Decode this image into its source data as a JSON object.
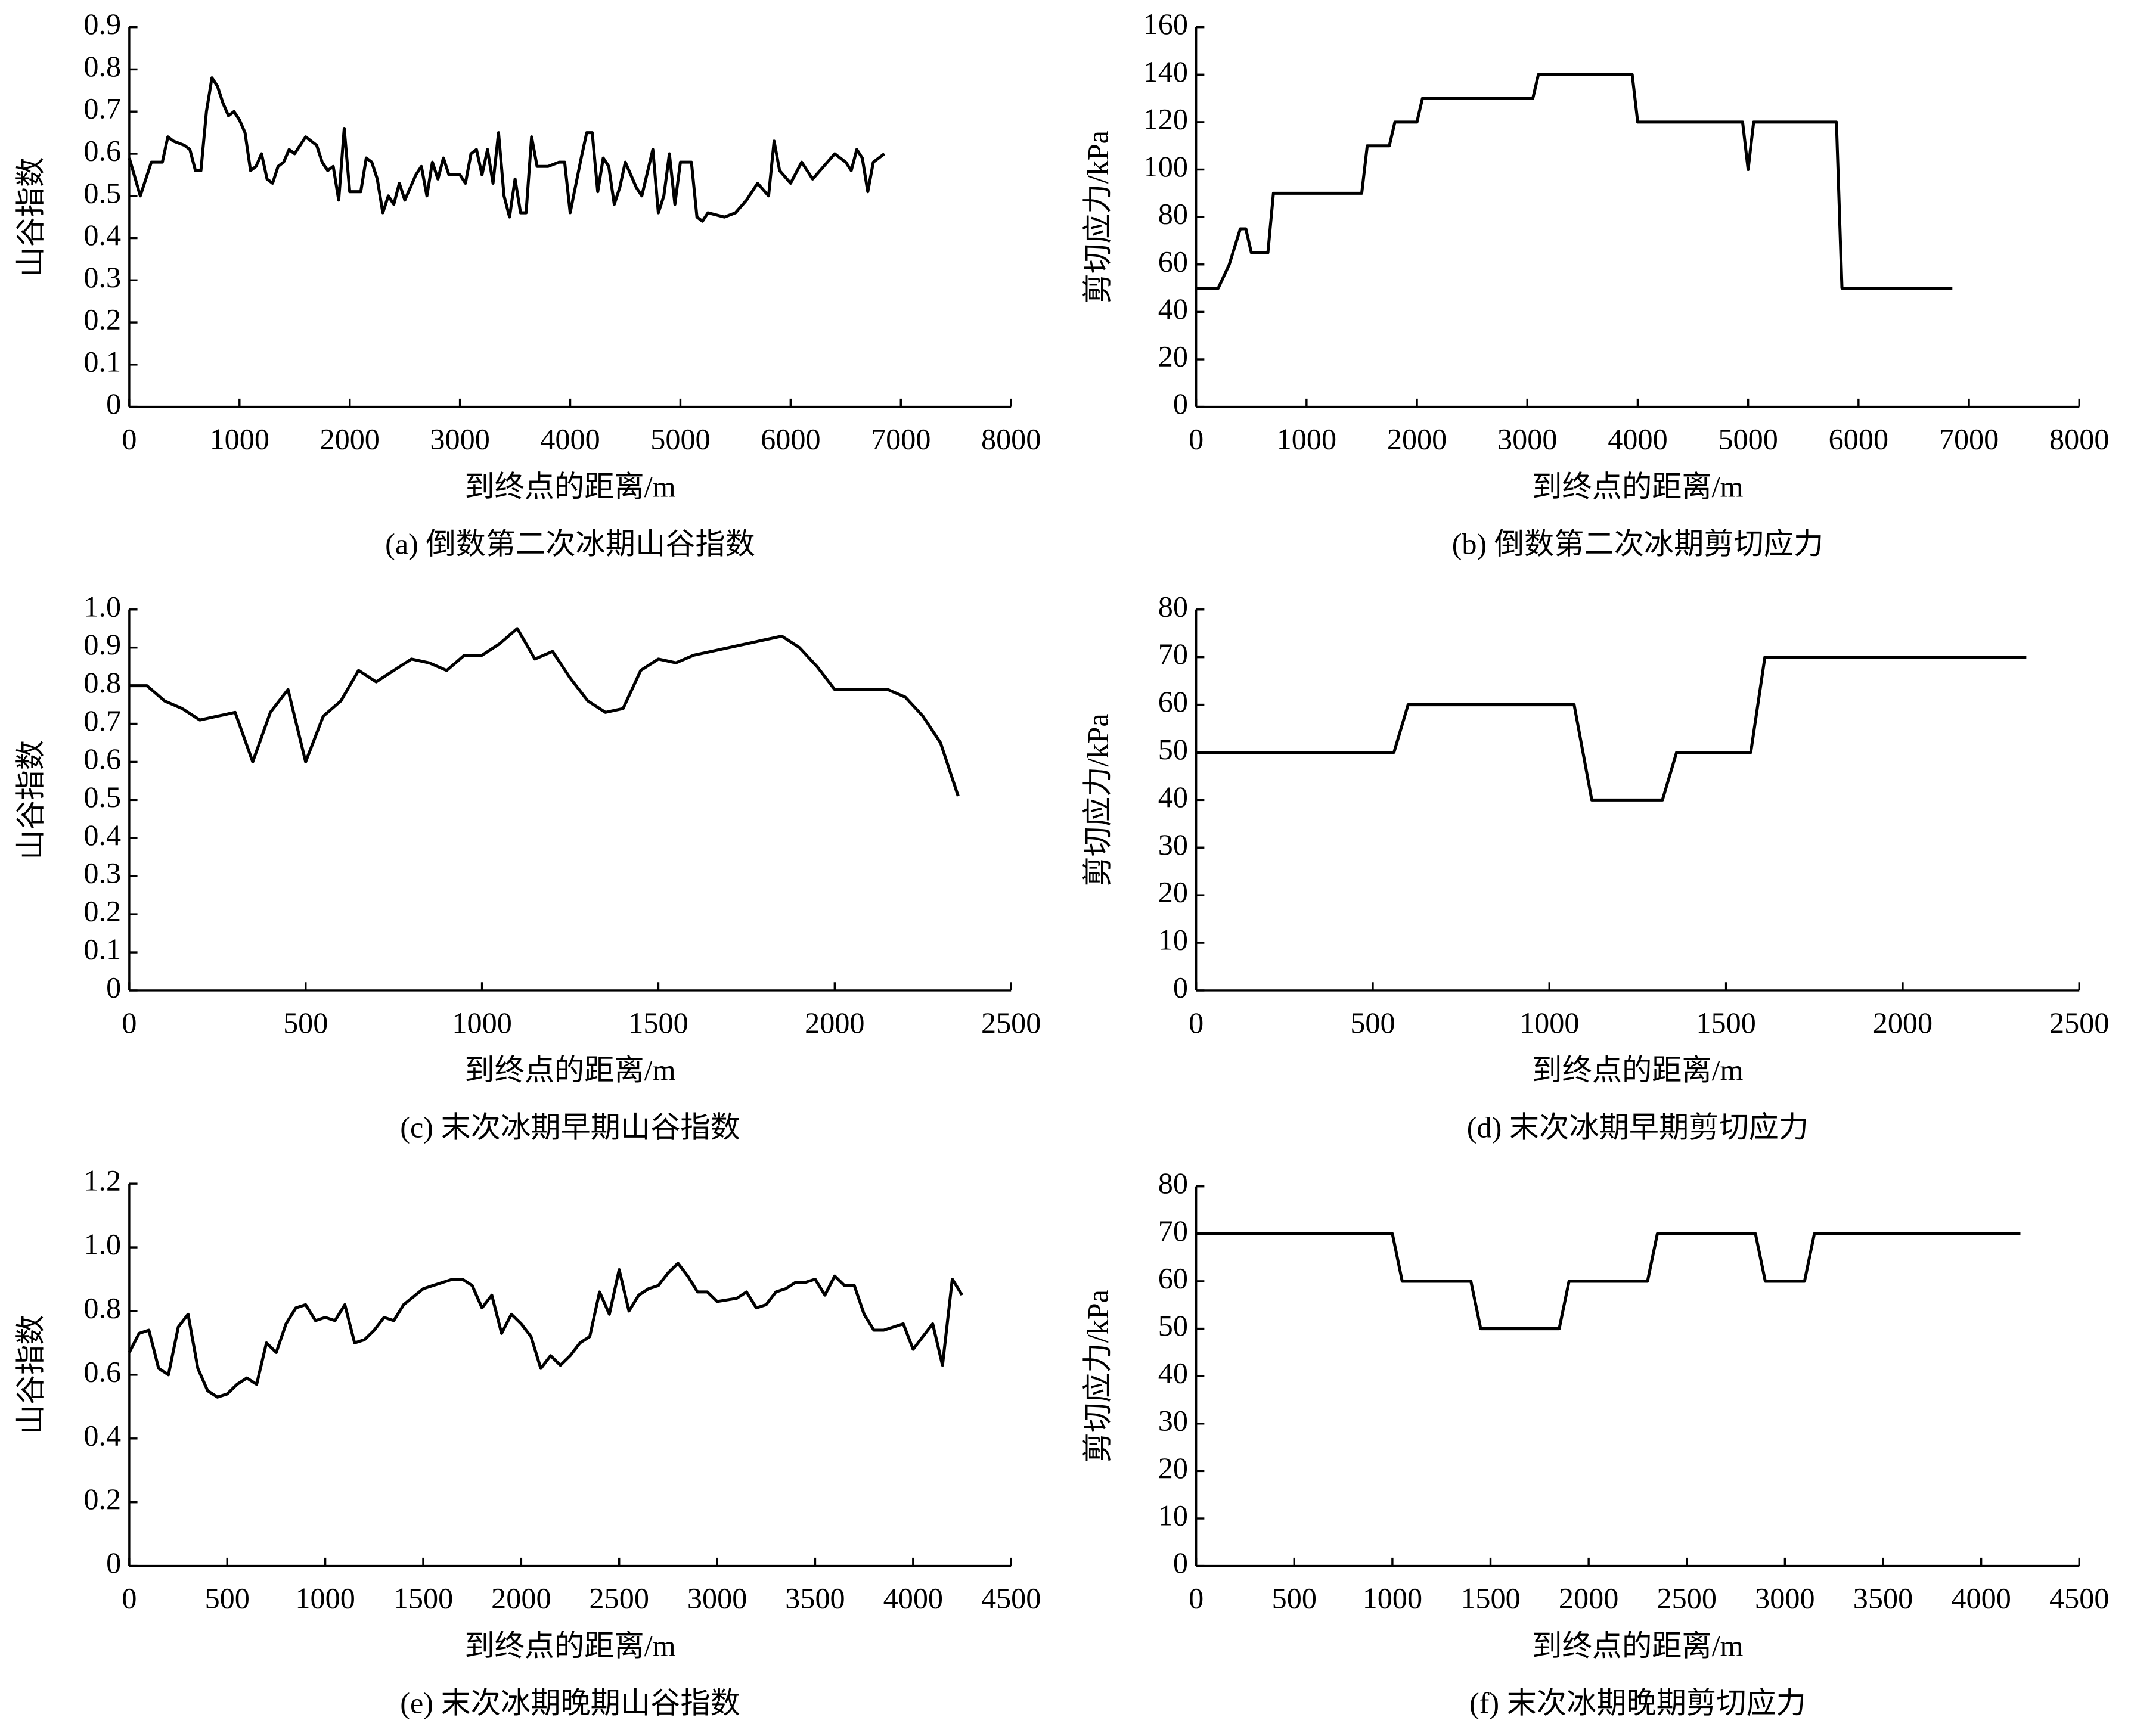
{
  "chart_data": [
    {
      "type": "line",
      "title": "(a) 倒数第二次冰期山谷指数",
      "xlabel": "到终点的距离/m",
      "ylabel": "山谷指数",
      "color": "#000000",
      "x": [
        0,
        100,
        200,
        300,
        350,
        400,
        500,
        550,
        600,
        650,
        700,
        750,
        800,
        850,
        900,
        950,
        1000,
        1050,
        1100,
        1150,
        1200,
        1250,
        1300,
        1350,
        1400,
        1450,
        1500,
        1600,
        1700,
        1750,
        1800,
        1850,
        1900,
        1950,
        2000,
        2100,
        2150,
        2200,
        2250,
        2300,
        2350,
        2400,
        2450,
        2500,
        2600,
        2650,
        2700,
        2750,
        2800,
        2850,
        2900,
        3000,
        3050,
        3100,
        3150,
        3200,
        3250,
        3300,
        3350,
        3400,
        3450,
        3500,
        3550,
        3600,
        3650,
        3700,
        3800,
        3900,
        3950,
        4000,
        4100,
        4150,
        4200,
        4250,
        4300,
        4350,
        4400,
        4450,
        4500,
        4600,
        4650,
        4750,
        4800,
        4850,
        4900,
        4950,
        5000,
        5100,
        5150,
        5200,
        5250,
        5400,
        5500,
        5600,
        5700,
        5800,
        5850,
        5900,
        6000,
        6100,
        6200,
        6300,
        6400,
        6500,
        6550,
        6600,
        6650,
        6700,
        6750,
        6800,
        6850
      ],
      "values": [
        0.59,
        0.5,
        0.58,
        0.58,
        0.64,
        0.63,
        0.62,
        0.61,
        0.56,
        0.56,
        0.7,
        0.78,
        0.76,
        0.72,
        0.69,
        0.7,
        0.68,
        0.65,
        0.56,
        0.57,
        0.6,
        0.54,
        0.53,
        0.57,
        0.58,
        0.61,
        0.6,
        0.64,
        0.62,
        0.58,
        0.56,
        0.57,
        0.49,
        0.66,
        0.51,
        0.51,
        0.59,
        0.58,
        0.54,
        0.46,
        0.5,
        0.48,
        0.53,
        0.49,
        0.55,
        0.57,
        0.5,
        0.58,
        0.54,
        0.59,
        0.55,
        0.55,
        0.53,
        0.6,
        0.61,
        0.55,
        0.61,
        0.53,
        0.65,
        0.5,
        0.45,
        0.54,
        0.46,
        0.46,
        0.64,
        0.57,
        0.57,
        0.58,
        0.58,
        0.46,
        0.59,
        0.65,
        0.65,
        0.51,
        0.59,
        0.57,
        0.48,
        0.52,
        0.58,
        0.52,
        0.5,
        0.61,
        0.46,
        0.5,
        0.6,
        0.48,
        0.58,
        0.58,
        0.45,
        0.44,
        0.46,
        0.45,
        0.46,
        0.49,
        0.53,
        0.5,
        0.63,
        0.56,
        0.53,
        0.58,
        0.54,
        0.57,
        0.6,
        0.58,
        0.56,
        0.61,
        0.59,
        0.51,
        0.58,
        0.59,
        0.6
      ],
      "xlim": [
        0,
        8000
      ],
      "xticks": [
        0,
        1000,
        2000,
        3000,
        4000,
        5000,
        6000,
        7000,
        8000
      ],
      "ylim": [
        0,
        0.9
      ],
      "yticks": [
        0,
        0.1,
        0.2,
        0.3,
        0.4,
        0.5,
        0.6,
        0.7,
        0.8,
        0.9
      ]
    },
    {
      "type": "line",
      "title": "(b) 倒数第二次冰期剪切应力",
      "xlabel": "到终点的距离/m",
      "ylabel": "剪切应力/kPa",
      "color": "#000000",
      "x": [
        0,
        200,
        300,
        400,
        450,
        500,
        650,
        700,
        1500,
        1550,
        1750,
        1800,
        2000,
        2050,
        3050,
        3100,
        3950,
        4000,
        4950,
        5000,
        5050,
        5800,
        5850,
        6850
      ],
      "values": [
        50,
        50,
        60,
        75,
        75,
        65,
        65,
        90,
        90,
        110,
        110,
        120,
        120,
        130,
        130,
        140,
        140,
        120,
        120,
        100,
        120,
        120,
        50,
        50
      ],
      "xlim": [
        0,
        8000
      ],
      "xticks": [
        0,
        1000,
        2000,
        3000,
        4000,
        5000,
        6000,
        7000,
        8000
      ],
      "ylim": [
        0,
        160
      ],
      "yticks": [
        0,
        20,
        40,
        60,
        80,
        100,
        120,
        140,
        160
      ]
    },
    {
      "type": "line",
      "title": "(c) 末次冰期早期山谷指数",
      "xlabel": "到终点的距离/m",
      "ylabel": "山谷指数",
      "color": "#000000",
      "x": [
        0,
        50,
        100,
        150,
        200,
        250,
        300,
        350,
        400,
        450,
        500,
        550,
        600,
        650,
        700,
        750,
        800,
        850,
        900,
        950,
        1000,
        1050,
        1100,
        1150,
        1200,
        1250,
        1300,
        1350,
        1400,
        1450,
        1500,
        1550,
        1600,
        1650,
        1700,
        1750,
        1800,
        1850,
        1900,
        1950,
        2000,
        2050,
        2100,
        2150,
        2200,
        2250,
        2300,
        2350
      ],
      "values": [
        0.8,
        0.8,
        0.76,
        0.74,
        0.71,
        0.72,
        0.73,
        0.6,
        0.73,
        0.79,
        0.6,
        0.72,
        0.76,
        0.84,
        0.81,
        0.84,
        0.87,
        0.86,
        0.84,
        0.88,
        0.88,
        0.91,
        0.95,
        0.87,
        0.89,
        0.82,
        0.76,
        0.73,
        0.74,
        0.84,
        0.87,
        0.86,
        0.88,
        0.89,
        0.9,
        0.91,
        0.92,
        0.93,
        0.9,
        0.85,
        0.79,
        0.79,
        0.79,
        0.79,
        0.77,
        0.72,
        0.65,
        0.51
      ],
      "xlim": [
        0,
        2500
      ],
      "xticks": [
        0,
        500,
        1000,
        1500,
        2000,
        2500
      ],
      "ylim": [
        0,
        1.0
      ],
      "yticks": [
        0,
        0.1,
        0.2,
        0.3,
        0.4,
        0.5,
        0.6,
        0.7,
        0.8,
        0.9,
        {
          "value": 1.0,
          "label": "1.0"
        }
      ]
    },
    {
      "type": "line",
      "title": "(d) 末次冰期早期剪切应力",
      "xlabel": "到终点的距离/m",
      "ylabel": "剪切应力/kPa",
      "color": "#000000",
      "x": [
        0,
        560,
        600,
        1070,
        1120,
        1320,
        1360,
        1570,
        1610,
        2350
      ],
      "values": [
        50,
        50,
        60,
        60,
        40,
        40,
        50,
        50,
        70,
        70
      ],
      "xlim": [
        0,
        2500
      ],
      "xticks": [
        0,
        500,
        1000,
        1500,
        2000,
        2500
      ],
      "ylim": [
        0,
        80
      ],
      "yticks": [
        0,
        10,
        20,
        30,
        40,
        50,
        60,
        70,
        80
      ]
    },
    {
      "type": "line",
      "title": "(e) 末次冰期晚期山谷指数",
      "xlabel": "到终点的距离/m",
      "ylabel": "山谷指数",
      "color": "#000000",
      "x": [
        0,
        50,
        100,
        150,
        200,
        250,
        300,
        350,
        400,
        450,
        500,
        550,
        600,
        650,
        700,
        750,
        800,
        850,
        900,
        950,
        1000,
        1050,
        1100,
        1150,
        1200,
        1250,
        1300,
        1350,
        1400,
        1500,
        1550,
        1600,
        1650,
        1700,
        1750,
        1800,
        1850,
        1900,
        1950,
        2000,
        2050,
        2100,
        2150,
        2200,
        2250,
        2300,
        2350,
        2400,
        2450,
        2500,
        2550,
        2600,
        2650,
        2700,
        2750,
        2800,
        2850,
        2900,
        2950,
        3000,
        3100,
        3150,
        3200,
        3250,
        3300,
        3350,
        3400,
        3450,
        3500,
        3550,
        3600,
        3650,
        3700,
        3750,
        3800,
        3850,
        3950,
        4000,
        4100,
        4150,
        4200,
        4250
      ],
      "values": [
        0.67,
        0.73,
        0.74,
        0.62,
        0.6,
        0.75,
        0.79,
        0.62,
        0.55,
        0.53,
        0.54,
        0.57,
        0.59,
        0.57,
        0.7,
        0.67,
        0.76,
        0.81,
        0.82,
        0.77,
        0.78,
        0.77,
        0.82,
        0.7,
        0.71,
        0.74,
        0.78,
        0.77,
        0.82,
        0.87,
        0.88,
        0.89,
        0.9,
        0.9,
        0.88,
        0.81,
        0.85,
        0.73,
        0.79,
        0.76,
        0.72,
        0.62,
        0.66,
        0.63,
        0.66,
        0.7,
        0.72,
        0.86,
        0.79,
        0.93,
        0.8,
        0.85,
        0.87,
        0.88,
        0.92,
        0.95,
        0.91,
        0.86,
        0.86,
        0.83,
        0.84,
        0.86,
        0.81,
        0.82,
        0.86,
        0.87,
        0.89,
        0.89,
        0.9,
        0.85,
        0.91,
        0.88,
        0.88,
        0.79,
        0.74,
        0.74,
        0.76,
        0.68,
        0.76,
        0.63,
        0.9,
        0.85
      ],
      "xlim": [
        0,
        4500
      ],
      "xticks": [
        0,
        500,
        1000,
        1500,
        2000,
        2500,
        3000,
        3500,
        4000,
        4500
      ],
      "ylim": [
        0,
        1.2
      ],
      "yticks": [
        0,
        0.2,
        0.4,
        0.6,
        0.8,
        {
          "value": 1.0,
          "label": "1.0"
        },
        1.2
      ]
    },
    {
      "type": "line",
      "title": "(f) 末次冰期晚期剪切应力",
      "xlabel": "到终点的距离/m",
      "ylabel": "剪切应力/kPa",
      "color": "#000000",
      "x": [
        0,
        1000,
        1050,
        1400,
        1450,
        1850,
        1900,
        2300,
        2350,
        2850,
        2900,
        3100,
        3150,
        4200
      ],
      "values": [
        70,
        70,
        60,
        60,
        50,
        50,
        60,
        60,
        70,
        70,
        60,
        60,
        70,
        70
      ],
      "xlim": [
        0,
        4500
      ],
      "xticks": [
        0,
        500,
        1000,
        1500,
        2000,
        2500,
        3000,
        3500,
        4000,
        4500
      ],
      "ylim": [
        0,
        80
      ],
      "yticks": [
        0,
        10,
        20,
        30,
        40,
        50,
        60,
        70,
        80
      ]
    }
  ]
}
